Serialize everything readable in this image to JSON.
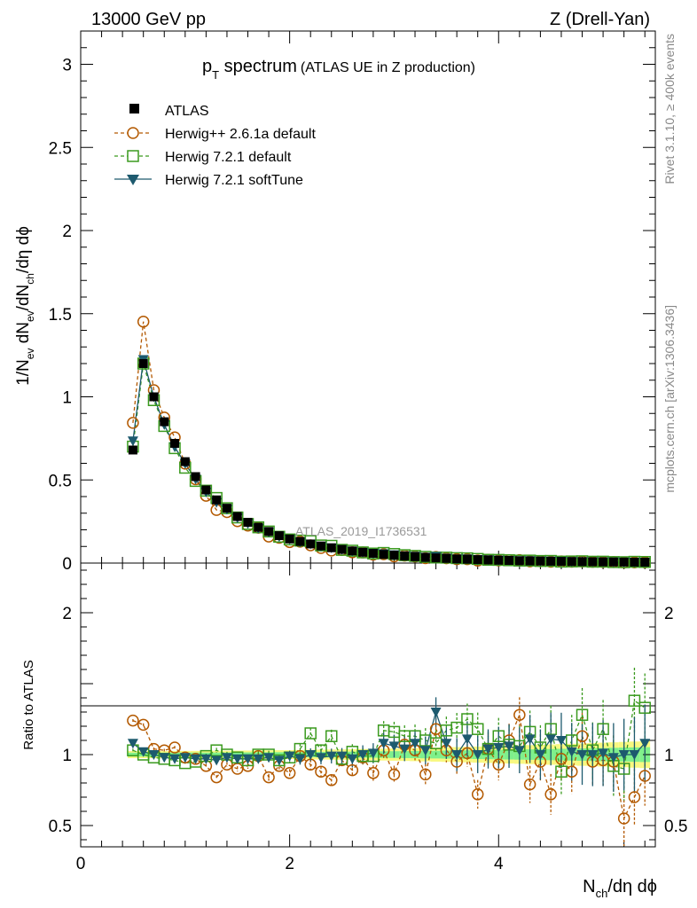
{
  "header": {
    "left": "13000 GeV pp",
    "right": "Z (Drell-Yan)"
  },
  "side_labels": {
    "rivet": "Rivet 3.1.10, ≥ 400k events",
    "mcplots": "mcplots.cern.ch [arXiv:1306.3436]"
  },
  "watermark": "ATLAS_2019_I1736531",
  "colors": {
    "atlas": "#000000",
    "herwigpp": "#b35900",
    "herwig721": "#3a9a1e",
    "softtune": "#1d5a6e",
    "band_inner": "#7ff08c",
    "band_outer": "#f8f880"
  },
  "chart_data": {
    "type": "scatter",
    "title": {
      "main": "p",
      "sub": "T",
      "rest": " spectrum",
      "note": "(ATLAS UE in Z production)"
    },
    "xlabel": {
      "a": "N",
      "sub": "ch",
      "b": "/dη dϕ"
    },
    "ylabel": {
      "p1": "1/N",
      "s1": "ev",
      "p2": " dN",
      "s2": "ev",
      "p3": "/dN",
      "s3": "ch",
      "p4": "/dη dϕ"
    },
    "ratio_ylabel": "Ratio to ATLAS",
    "xlim": [
      0,
      5.5
    ],
    "ylim": [
      0,
      3.2
    ],
    "ratio_ylim": [
      0.35,
      2.35
    ],
    "xticks": [
      "0",
      "2",
      "4"
    ],
    "xtick_values": [
      0,
      2,
      4
    ],
    "yticks": [
      "0",
      "0.5",
      "1",
      "1.5",
      "2",
      "2.5",
      "3"
    ],
    "ytick_values": [
      0,
      0.5,
      1,
      1.5,
      2,
      2.5,
      3
    ],
    "ratio_yticks": [
      "0.5",
      "1",
      "2"
    ],
    "ratio_ytick_values": [
      0.5,
      1,
      2
    ],
    "x": [
      0.5,
      0.6,
      0.7,
      0.8,
      0.9,
      1.0,
      1.1,
      1.2,
      1.3,
      1.4,
      1.5,
      1.6,
      1.7,
      1.8,
      1.9,
      2.0,
      2.1,
      2.2,
      2.3,
      2.4,
      2.5,
      2.6,
      2.7,
      2.8,
      2.9,
      3.0,
      3.1,
      3.2,
      3.3,
      3.4,
      3.5,
      3.6,
      3.7,
      3.8,
      3.9,
      4.0,
      4.1,
      4.2,
      4.3,
      4.4,
      4.5,
      4.6,
      4.7,
      4.8,
      4.9,
      5.0,
      5.1,
      5.2,
      5.3,
      5.4
    ],
    "series": [
      {
        "name": "ATLAS",
        "key": "atlas",
        "values": [
          0.68,
          1.2,
          1.0,
          0.85,
          0.72,
          0.61,
          0.52,
          0.44,
          0.38,
          0.33,
          0.28,
          0.245,
          0.215,
          0.19,
          0.165,
          0.145,
          0.13,
          0.115,
          0.103,
          0.092,
          0.082,
          0.073,
          0.065,
          0.058,
          0.052,
          0.047,
          0.042,
          0.038,
          0.034,
          0.031,
          0.028,
          0.025,
          0.023,
          0.021,
          0.019,
          0.017,
          0.016,
          0.014,
          0.013,
          0.012,
          0.011,
          0.01,
          0.009,
          0.0085,
          0.008,
          0.0072,
          0.0066,
          0.006,
          0.0055,
          0.005
        ]
      },
      {
        "name": "Herwig++ 2.6.1a default",
        "key": "herwigpp",
        "ratio": [
          1.24,
          1.21,
          1.04,
          1.03,
          1.05,
          0.98,
          0.97,
          0.92,
          0.84,
          0.93,
          0.9,
          0.92,
          0.99,
          0.84,
          0.92,
          0.87,
          0.99,
          0.93,
          0.88,
          0.82,
          0.96,
          0.89,
          0.98,
          0.87,
          1.03,
          0.86,
          1.07,
          1.03,
          0.86,
          1.18,
          1.03,
          0.95,
          1.01,
          0.72,
          1.04,
          0.93,
          1.1,
          1.28,
          0.79,
          0.95,
          0.72,
          0.97,
          0.88,
          1.13,
          0.95,
          0.96,
          0.95,
          0.55,
          0.7,
          0.85
        ]
      },
      {
        "name": "Herwig 7.2.1 default",
        "key": "herwig721",
        "ratio": [
          1.03,
          1.0,
          0.98,
          0.97,
          0.96,
          0.94,
          0.95,
          0.99,
          1.03,
          1.0,
          0.98,
          0.96,
          1.0,
          1.0,
          0.96,
          0.98,
          1.04,
          1.15,
          1.03,
          1.13,
          0.97,
          1.02,
          0.99,
          0.99,
          1.17,
          1.16,
          1.13,
          1.13,
          1.1,
          1.08,
          1.17,
          1.19,
          1.25,
          1.18,
          1.04,
          1.13,
          1.07,
          1.06,
          1.16,
          1.05,
          1.18,
          0.88,
          1.1,
          1.28,
          1.03,
          1.18,
          0.92,
          0.9,
          1.38,
          1.33
        ]
      },
      {
        "name": "Herwig 7.2.1 softTune",
        "key": "softtune",
        "ratio": [
          1.08,
          1.02,
          1.0,
          0.98,
          0.97,
          0.98,
          0.97,
          0.97,
          0.96,
          0.98,
          0.97,
          0.97,
          0.97,
          0.98,
          0.96,
          0.99,
          0.97,
          1.0,
          0.98,
          0.99,
          0.99,
          0.97,
          1.0,
          1.01,
          1.08,
          1.06,
          1.04,
          1.08,
          1.03,
          1.3,
          1.08,
          1.0,
          1.11,
          1.0,
          1.04,
          1.05,
          1.06,
          1.03,
          1.11,
          1.0,
          1.11,
          1.1,
          1.02,
          1.0,
          1.0,
          1.01,
          0.98,
          1.0,
          1.0,
          1.08
        ]
      }
    ],
    "legend_position": "top-left"
  }
}
